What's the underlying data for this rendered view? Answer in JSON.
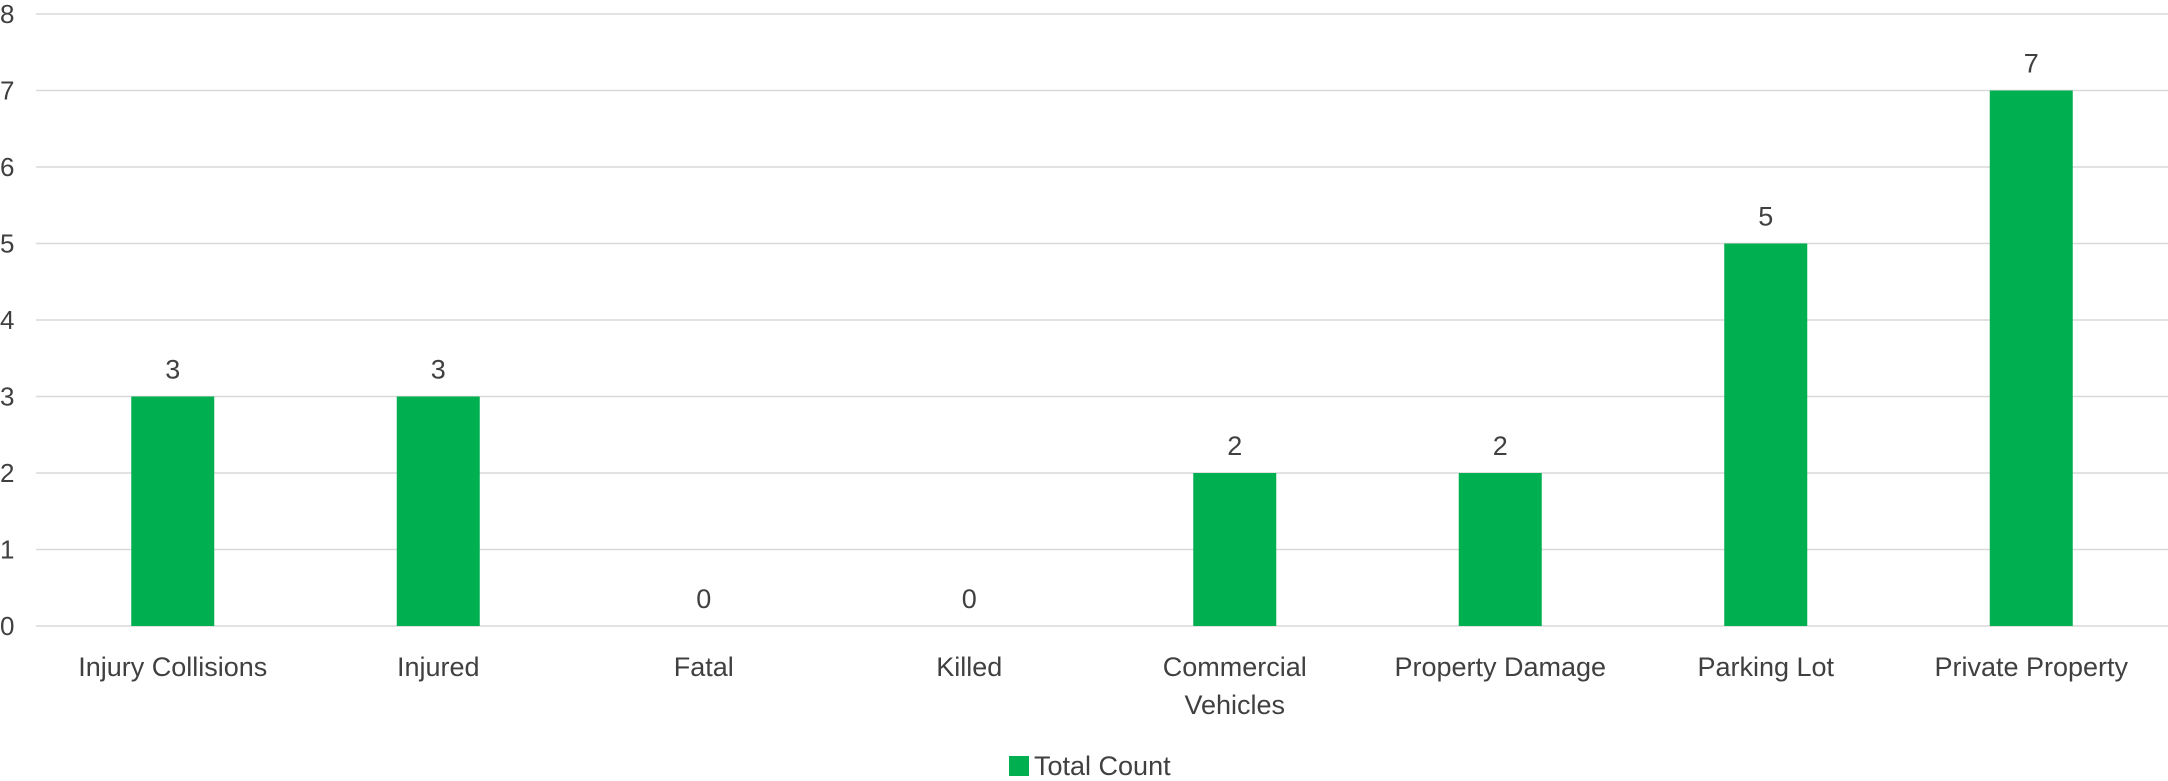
{
  "chart_data": {
    "type": "bar",
    "categories": [
      [
        "Injury Collisions"
      ],
      [
        "Injured"
      ],
      [
        "Fatal"
      ],
      [
        "Killed"
      ],
      [
        "Commercial",
        "Vehicles"
      ],
      [
        "Property Damage"
      ],
      [
        "Parking Lot"
      ],
      [
        "Private Property"
      ]
    ],
    "series": [
      {
        "name": "Total Count",
        "values": [
          3,
          3,
          0,
          0,
          2,
          2,
          5,
          7
        ],
        "color": "#00b050"
      }
    ],
    "ylim": [
      0,
      8
    ],
    "yticks": [
      0,
      1,
      2,
      3,
      4,
      5,
      6,
      7,
      8
    ],
    "grid": true,
    "data_labels": true,
    "legend_position": "bottom"
  }
}
